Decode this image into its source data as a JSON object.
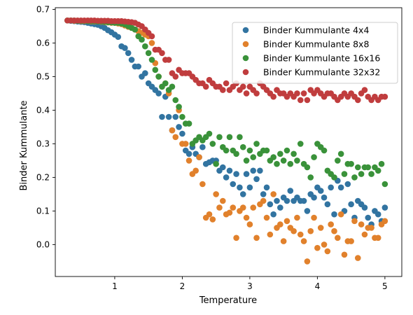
{
  "chart_data": {
    "type": "scatter",
    "title": "",
    "xlabel": "Temperature",
    "ylabel": "Binder Kummulante",
    "xlim": [
      0.12,
      5.25
    ],
    "ylim": [
      -0.095,
      0.705
    ],
    "xticks": [
      1,
      2,
      3,
      4,
      5
    ],
    "yticks": [
      0.0,
      0.1,
      0.2,
      0.3,
      0.4,
      0.5,
      0.6,
      0.7
    ],
    "xtick_labels": [
      "1",
      "2",
      "3",
      "4",
      "5"
    ],
    "ytick_labels": [
      "0.0",
      "0.1",
      "0.2",
      "0.3",
      "0.4",
      "0.5",
      "0.6",
      "0.7"
    ],
    "grid": false,
    "legend_position": "top-right",
    "x": [
      0.3,
      0.35,
      0.4,
      0.45,
      0.5,
      0.55,
      0.6,
      0.65,
      0.7,
      0.75,
      0.8,
      0.85,
      0.9,
      0.95,
      1.0,
      1.05,
      1.1,
      1.15,
      1.2,
      1.25,
      1.3,
      1.35,
      1.4,
      1.45,
      1.5,
      1.55,
      1.6,
      1.65,
      1.7,
      1.75,
      1.8,
      1.85,
      1.9,
      1.95,
      2.0,
      2.05,
      2.1,
      2.15,
      2.2,
      2.25,
      2.3,
      2.35,
      2.4,
      2.45,
      2.5,
      2.55,
      2.6,
      2.65,
      2.7,
      2.75,
      2.8,
      2.85,
      2.9,
      2.95,
      3.0,
      3.05,
      3.1,
      3.15,
      3.2,
      3.25,
      3.3,
      3.35,
      3.4,
      3.45,
      3.5,
      3.55,
      3.6,
      3.65,
      3.7,
      3.75,
      3.8,
      3.85,
      3.9,
      3.95,
      4.0,
      4.05,
      4.1,
      4.15,
      4.2,
      4.25,
      4.3,
      4.35,
      4.4,
      4.45,
      4.5,
      4.55,
      4.6,
      4.65,
      4.7,
      4.75,
      4.8,
      4.85,
      4.9,
      4.95,
      5.0
    ],
    "series": [
      {
        "name": "Binder Kummulante 4x4",
        "color": "#3274a1",
        "values": [
          0.667,
          0.666,
          0.665,
          0.664,
          0.663,
          0.662,
          0.66,
          0.658,
          0.656,
          0.654,
          0.65,
          0.645,
          0.638,
          0.632,
          0.625,
          0.618,
          0.59,
          0.585,
          0.57,
          0.55,
          0.53,
          0.53,
          0.5,
          0.51,
          0.48,
          0.47,
          0.46,
          0.45,
          0.38,
          0.44,
          0.38,
          0.34,
          0.38,
          0.35,
          0.33,
          0.28,
          0.27,
          0.29,
          0.27,
          0.26,
          0.29,
          0.24,
          0.245,
          0.25,
          0.25,
          0.22,
          0.23,
          0.2,
          0.22,
          0.18,
          0.21,
          0.17,
          0.15,
          0.21,
          0.17,
          0.22,
          0.195,
          0.22,
          0.15,
          0.17,
          0.12,
          0.09,
          0.13,
          0.11,
          0.14,
          0.13,
          0.16,
          0.13,
          0.14,
          0.13,
          0.13,
          0.1,
          0.15,
          0.14,
          0.17,
          0.16,
          0.14,
          0.12,
          0.17,
          0.09,
          0.19,
          0.17,
          0.1,
          0.18,
          0.12,
          0.08,
          0.13,
          0.12,
          0.11,
          0.08,
          0.06,
          0.1,
          0.09,
          0.07,
          0.11
        ]
      },
      {
        "name": "Binder Kummulante 8x8",
        "color": "#e1812c",
        "values": [
          0.667,
          0.667,
          0.666,
          0.666,
          0.665,
          0.665,
          0.665,
          0.664,
          0.664,
          0.664,
          0.663,
          0.662,
          0.661,
          0.66,
          0.66,
          0.658,
          0.656,
          0.652,
          0.648,
          0.645,
          0.64,
          0.635,
          0.63,
          0.625,
          0.62,
          0.6,
          0.54,
          0.5,
          0.47,
          0.48,
          0.45,
          0.34,
          0.32,
          0.4,
          0.3,
          0.3,
          0.25,
          0.21,
          0.22,
          0.26,
          0.18,
          0.08,
          0.09,
          0.075,
          0.15,
          0.11,
          0.13,
          0.09,
          0.095,
          0.11,
          0.02,
          0.1,
          0.11,
          0.08,
          0.06,
          0.11,
          0.02,
          0.12,
          0.13,
          0.08,
          0.03,
          0.15,
          0.05,
          0.06,
          0.01,
          0.07,
          0.05,
          0.04,
          0.08,
          0.03,
          0.01,
          -0.05,
          0.04,
          0.08,
          -0.01,
          0.05,
          0.0,
          -0.02,
          0.06,
          0.04,
          0.02,
          0.09,
          -0.03,
          0.01,
          0.01,
          0.07,
          -0.04,
          0.06,
          0.03,
          0.05,
          0.05,
          0.02,
          0.02,
          0.06,
          0.07
        ]
      },
      {
        "name": "Binder Kummulante 16x16",
        "color": "#3a923a",
        "values": [
          0.667,
          0.667,
          0.667,
          0.666,
          0.666,
          0.666,
          0.665,
          0.665,
          0.665,
          0.664,
          0.664,
          0.663,
          0.662,
          0.661,
          0.66,
          0.66,
          0.658,
          0.655,
          0.65,
          0.645,
          0.64,
          0.62,
          0.61,
          0.59,
          0.57,
          0.55,
          0.52,
          0.5,
          0.47,
          0.48,
          0.46,
          0.47,
          0.43,
          0.41,
          0.38,
          0.36,
          0.36,
          0.3,
          0.31,
          0.32,
          0.31,
          0.32,
          0.33,
          0.3,
          0.24,
          0.32,
          0.29,
          0.28,
          0.32,
          0.28,
          0.27,
          0.32,
          0.29,
          0.25,
          0.28,
          0.26,
          0.3,
          0.27,
          0.28,
          0.28,
          0.25,
          0.26,
          0.24,
          0.27,
          0.25,
          0.28,
          0.24,
          0.27,
          0.25,
          0.3,
          0.24,
          0.23,
          0.2,
          0.26,
          0.3,
          0.29,
          0.28,
          0.22,
          0.21,
          0.2,
          0.25,
          0.27,
          0.21,
          0.24,
          0.24,
          0.2,
          0.23,
          0.21,
          0.23,
          0.23,
          0.21,
          0.23,
          0.22,
          0.24,
          0.18
        ]
      },
      {
        "name": "Binder Kummulante 32x32",
        "color": "#c03d3e",
        "values": [
          0.667,
          0.667,
          0.667,
          0.667,
          0.667,
          0.667,
          0.667,
          0.667,
          0.667,
          0.666,
          0.666,
          0.666,
          0.666,
          0.665,
          0.665,
          0.665,
          0.665,
          0.664,
          0.663,
          0.662,
          0.66,
          0.655,
          0.65,
          0.64,
          0.63,
          0.62,
          0.58,
          0.58,
          0.57,
          0.55,
          0.55,
          0.51,
          0.5,
          0.52,
          0.51,
          0.51,
          0.51,
          0.5,
          0.49,
          0.48,
          0.48,
          0.47,
          0.49,
          0.48,
          0.47,
          0.47,
          0.46,
          0.48,
          0.46,
          0.47,
          0.48,
          0.46,
          0.47,
          0.45,
          0.47,
          0.46,
          0.45,
          0.48,
          0.47,
          0.46,
          0.45,
          0.44,
          0.46,
          0.45,
          0.45,
          0.44,
          0.45,
          0.44,
          0.45,
          0.43,
          0.45,
          0.43,
          0.46,
          0.45,
          0.46,
          0.45,
          0.44,
          0.45,
          0.45,
          0.44,
          0.43,
          0.44,
          0.45,
          0.44,
          0.45,
          0.44,
          0.43,
          0.45,
          0.46,
          0.44,
          0.43,
          0.44,
          0.43,
          0.44,
          0.44
        ]
      }
    ]
  }
}
